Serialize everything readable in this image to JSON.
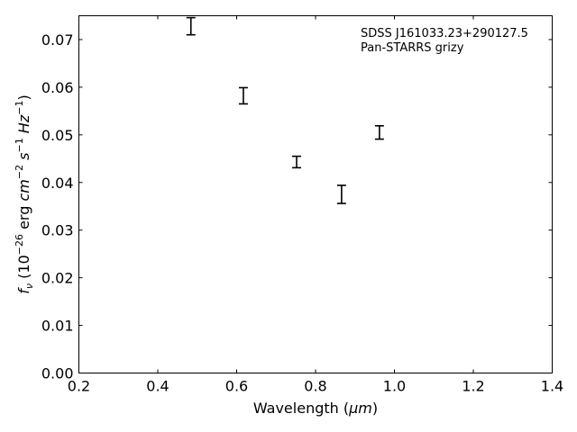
{
  "chart_data": {
    "type": "scatter",
    "title": "",
    "annotation_lines": [
      "SDSS J161033.23+290127.5",
      "Pan-STARRS grizy"
    ],
    "xlabel_text": "Wavelength (",
    "xlabel_unit": "μm",
    "xlabel_close": ")",
    "ylabel_parts": {
      "f": "f",
      "nu": "ν",
      "open": " (10",
      "exp1": "−26",
      "erg": " erg ",
      "cm": "cm",
      "exp2": "−2",
      "s": " s",
      "exp3": "−1",
      "hz": " Hz",
      "exp4": "−1",
      "close": ")"
    },
    "xlim": [
      0.2,
      1.4
    ],
    "ylim": [
      0.0,
      0.075
    ],
    "xticks": [
      0.2,
      0.4,
      0.6,
      0.8,
      1.0,
      1.2,
      1.4
    ],
    "xtick_labels": [
      "0.2",
      "0.4",
      "0.6",
      "0.8",
      "1.0",
      "1.2",
      "1.4"
    ],
    "yticks": [
      0.0,
      0.01,
      0.02,
      0.03,
      0.04,
      0.05,
      0.06,
      0.07
    ],
    "ytick_labels": [
      "0.00",
      "0.01",
      "0.02",
      "0.03",
      "0.04",
      "0.05",
      "0.06",
      "0.07"
    ],
    "grid": false,
    "legend": "none",
    "annotation_position": "top-right",
    "series": [
      {
        "marker": "errorbar",
        "color": "#000000",
        "points": [
          {
            "x": 0.484,
            "y": 0.0728,
            "yerr": 0.0018
          },
          {
            "x": 0.617,
            "y": 0.0582,
            "yerr": 0.0017
          },
          {
            "x": 0.752,
            "y": 0.0443,
            "yerr": 0.0012
          },
          {
            "x": 0.866,
            "y": 0.0375,
            "yerr": 0.0019
          },
          {
            "x": 0.962,
            "y": 0.0505,
            "yerr": 0.0014
          }
        ]
      }
    ]
  }
}
